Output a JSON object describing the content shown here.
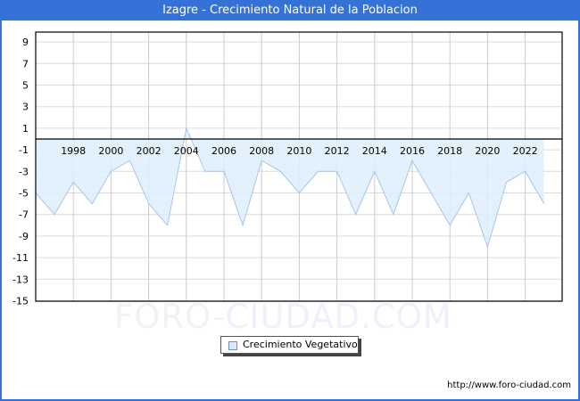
{
  "header": {
    "title": "Izagre - Crecimiento Natural de la Poblacion"
  },
  "legend": {
    "label": "Crecimiento Vegetativo"
  },
  "footer": {
    "credit": "http://www.foro-ciudad.com"
  },
  "watermark": {
    "part1": "FORO-",
    "part2": "CIUDAD.COM"
  },
  "colors": {
    "accent": "#3472d8",
    "fill": "#ddeefc",
    "line": "#a8c4ec"
  },
  "chart_data": {
    "type": "area",
    "title": "Izagre - Crecimiento Natural de la Poblacion",
    "xlabel": "",
    "ylabel": "",
    "ylim": [
      -15,
      10
    ],
    "yticks": [
      9,
      7,
      5,
      3,
      1,
      -1,
      -3,
      -5,
      -7,
      -9,
      -11,
      -13,
      -15
    ],
    "xticks": [
      1998,
      2000,
      2002,
      2004,
      2006,
      2008,
      2010,
      2012,
      2014,
      2016,
      2018,
      2020,
      2022
    ],
    "grid": true,
    "legend_position": "bottom",
    "series": [
      {
        "name": "Crecimiento Vegetativo",
        "x": [
          1996,
          1997,
          1998,
          1999,
          2000,
          2001,
          2002,
          2003,
          2004,
          2005,
          2006,
          2007,
          2008,
          2009,
          2010,
          2011,
          2012,
          2013,
          2014,
          2015,
          2016,
          2017,
          2018,
          2019,
          2020,
          2021,
          2022,
          2023
        ],
        "values": [
          -5,
          -7,
          -4,
          -6,
          -3,
          -2,
          -6,
          -8,
          1,
          -3,
          -3,
          -8,
          -2,
          -3,
          -5,
          -3,
          -3,
          -7,
          -3,
          -7,
          -2,
          -5,
          -8,
          -5,
          -10,
          -4,
          -3,
          -6
        ]
      }
    ]
  }
}
